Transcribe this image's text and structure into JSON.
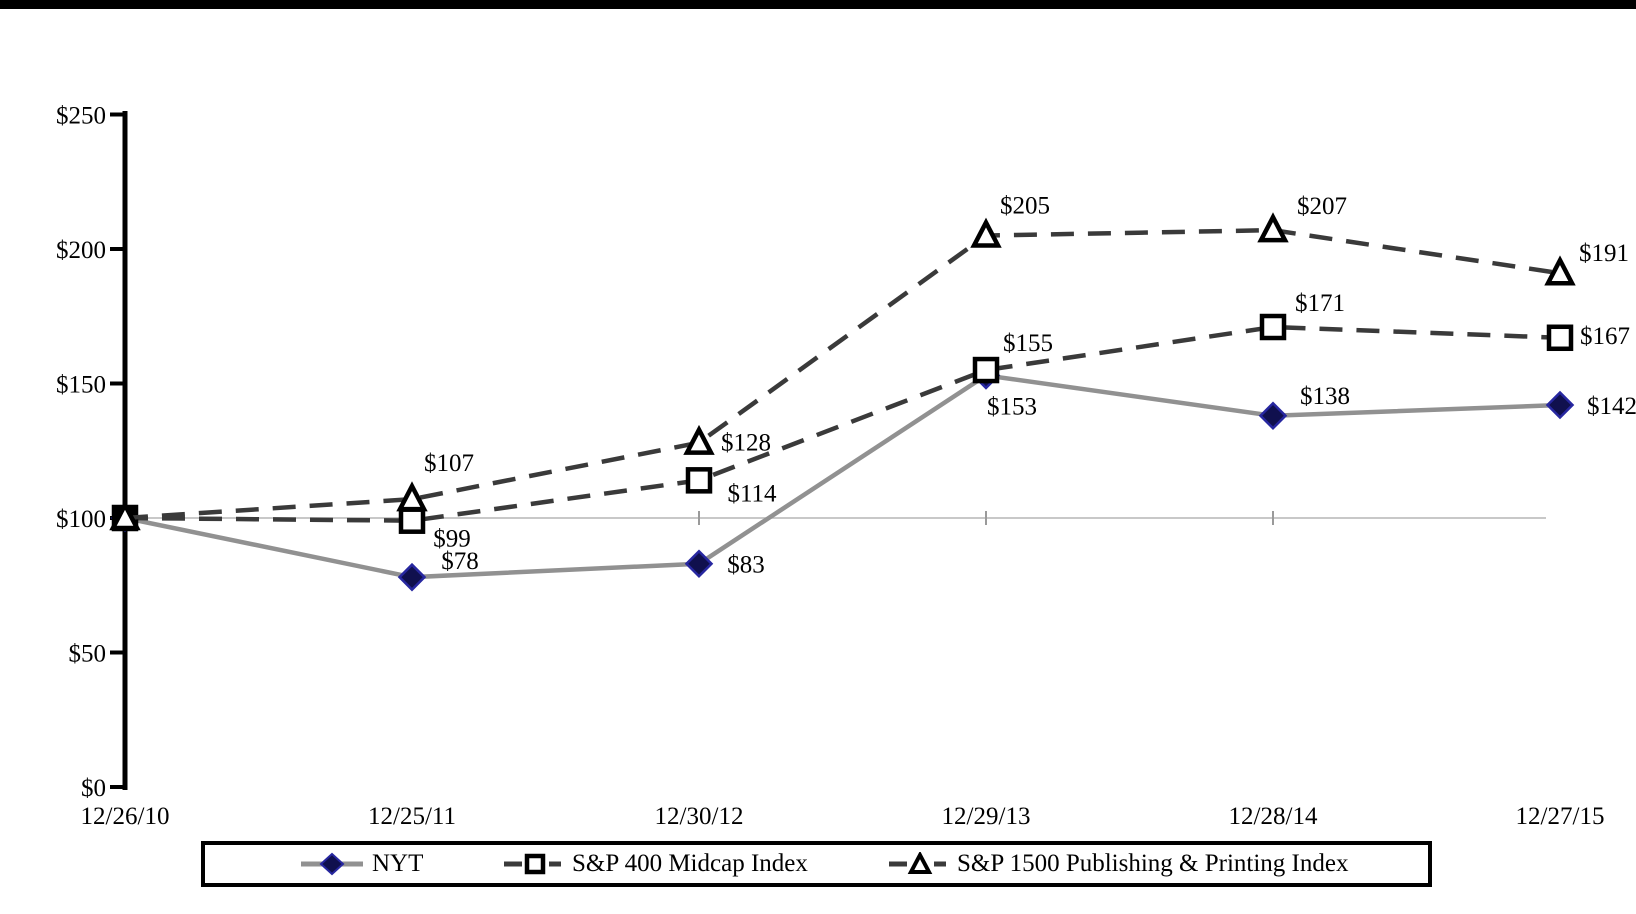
{
  "page": {
    "top_bar_color": "#000000",
    "background_color": "#ffffff"
  },
  "chart_data": {
    "type": "line",
    "title": "",
    "categories": [
      "12/26/10",
      "12/25/11",
      "12/30/12",
      "12/29/13",
      "12/28/14",
      "12/27/15"
    ],
    "y_axis": {
      "tick_labels": [
        "$0",
        "$50",
        "$100",
        "$150",
        "$200",
        "$250"
      ],
      "tick_values": [
        0,
        50,
        100,
        150,
        200,
        250
      ],
      "ylim": [
        0,
        250
      ]
    },
    "gridline_value": 100,
    "grid": "single-line-at-100",
    "legend_position": "bottom-boxed",
    "colors": {
      "dashed_line": "#3a3a3a",
      "nyt_line": "#919191",
      "diamond_fill": "#10104e",
      "diamond_stroke": "#2727a0",
      "open_marker_stroke": "#000000",
      "open_marker_fill": "#ffffff",
      "gridline": "#b5b5b5",
      "axis": "#000000"
    },
    "series": [
      {
        "name": "NYT",
        "marker": "diamond",
        "line_style": "solid",
        "values": [
          100,
          78,
          83,
          153,
          138,
          142
        ],
        "point_labels": [
          "",
          "$78",
          "$83",
          "$153",
          "$138",
          "$142"
        ],
        "label_offsets": [
          null,
          [
            48,
            -17
          ],
          [
            47,
            0
          ],
          [
            26,
            30
          ],
          [
            52,
            -21
          ],
          [
            52,
            0
          ]
        ]
      },
      {
        "name": "S&P 400 Midcap Index",
        "marker": "square",
        "line_style": "dashed",
        "values": [
          100,
          99,
          114,
          155,
          171,
          167
        ],
        "point_labels": [
          "",
          "$99",
          "$114",
          "$155",
          "$171",
          "$167"
        ],
        "label_offsets": [
          null,
          [
            40,
            17
          ],
          [
            53,
            12
          ],
          [
            42,
            -28
          ],
          [
            47,
            -25
          ],
          [
            45,
            -3
          ]
        ]
      },
      {
        "name": "S&P 1500 Publishing & Printing Index",
        "marker": "triangle",
        "line_style": "dashed",
        "values": [
          100,
          107,
          128,
          205,
          207,
          191
        ],
        "point_labels": [
          "",
          "$107",
          "$128",
          "$205",
          "$207",
          "$191"
        ],
        "label_offsets": [
          null,
          [
            37,
            -37
          ],
          [
            47,
            -1
          ],
          [
            39,
            -31
          ],
          [
            49,
            -25
          ],
          [
            44,
            -21
          ]
        ]
      }
    ]
  }
}
